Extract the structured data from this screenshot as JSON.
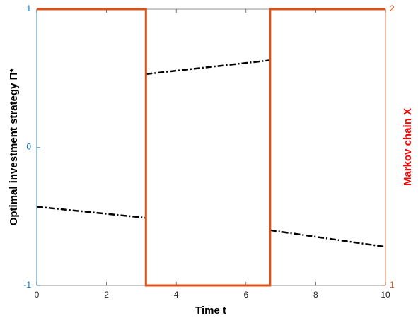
{
  "chart_data": {
    "type": "line",
    "xlabel": "Time t",
    "ylabel": "Optimal investment strategy Π*",
    "y2label": "Markov chain X",
    "xlim": [
      0,
      10
    ],
    "xticks": [
      0,
      2,
      4,
      6,
      8,
      10
    ],
    "ylim": [
      -1,
      1
    ],
    "yticks": [
      -1,
      0,
      1
    ],
    "y2lim": [
      1,
      2
    ],
    "y2ticks": [
      1,
      2
    ],
    "ylabel_color": "#000000",
    "y2label_color": "#ff0000",
    "yaxis_color": "#0072bd",
    "y2axis_color": "#d95319",
    "series": [
      {
        "color": "#000000",
        "dash": true,
        "x": [
          0,
          3.13,
          3.13,
          3.13,
          6.69,
          6.69,
          6.69,
          10
        ],
        "values": [
          -0.43,
          -0.51,
          null,
          0.53,
          0.63,
          null,
          -0.6,
          -0.72
        ]
      },
      {
        "color": "#d95319",
        "axis": "y2",
        "x": [
          0,
          3.13,
          3.13,
          6.69,
          6.69,
          10
        ],
        "values": [
          2,
          2,
          1,
          1,
          2,
          2
        ]
      }
    ]
  }
}
